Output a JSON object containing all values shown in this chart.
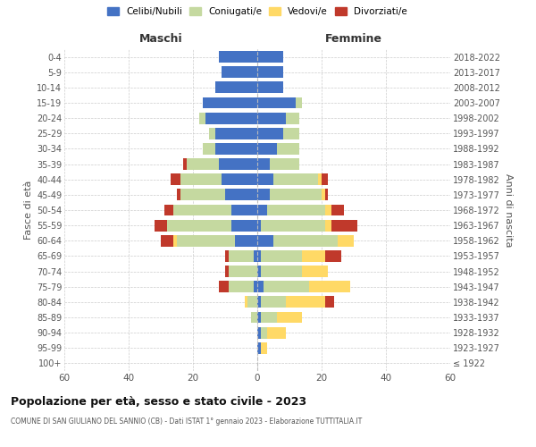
{
  "age_groups": [
    "100+",
    "95-99",
    "90-94",
    "85-89",
    "80-84",
    "75-79",
    "70-74",
    "65-69",
    "60-64",
    "55-59",
    "50-54",
    "45-49",
    "40-44",
    "35-39",
    "30-34",
    "25-29",
    "20-24",
    "15-19",
    "10-14",
    "5-9",
    "0-4"
  ],
  "birth_years": [
    "≤ 1922",
    "1923-1927",
    "1928-1932",
    "1933-1937",
    "1938-1942",
    "1943-1947",
    "1948-1952",
    "1953-1957",
    "1958-1962",
    "1963-1967",
    "1968-1972",
    "1973-1977",
    "1978-1982",
    "1983-1987",
    "1988-1992",
    "1993-1997",
    "1998-2002",
    "2003-2007",
    "2008-2012",
    "2013-2017",
    "2018-2022"
  ],
  "maschi": {
    "celibi": [
      0,
      0,
      0,
      0,
      0,
      1,
      0,
      1,
      7,
      8,
      8,
      10,
      11,
      12,
      13,
      13,
      16,
      17,
      13,
      11,
      12
    ],
    "coniugati": [
      0,
      0,
      0,
      2,
      3,
      8,
      9,
      8,
      18,
      20,
      18,
      14,
      13,
      10,
      4,
      2,
      2,
      0,
      0,
      0,
      0
    ],
    "vedovi": [
      0,
      0,
      0,
      0,
      1,
      0,
      0,
      0,
      1,
      0,
      0,
      0,
      0,
      0,
      0,
      0,
      0,
      0,
      0,
      0,
      0
    ],
    "divorziati": [
      0,
      0,
      0,
      0,
      0,
      3,
      1,
      1,
      4,
      4,
      3,
      1,
      3,
      1,
      0,
      0,
      0,
      0,
      0,
      0,
      0
    ]
  },
  "femmine": {
    "nubili": [
      0,
      1,
      1,
      1,
      1,
      2,
      1,
      1,
      5,
      1,
      3,
      4,
      5,
      4,
      6,
      8,
      9,
      12,
      8,
      8,
      8
    ],
    "coniugate": [
      0,
      0,
      2,
      5,
      8,
      14,
      13,
      13,
      20,
      20,
      18,
      16,
      14,
      9,
      7,
      5,
      4,
      2,
      0,
      0,
      0
    ],
    "vedove": [
      0,
      2,
      6,
      8,
      12,
      13,
      8,
      7,
      5,
      2,
      2,
      1,
      1,
      0,
      0,
      0,
      0,
      0,
      0,
      0,
      0
    ],
    "divorziate": [
      0,
      0,
      0,
      0,
      3,
      0,
      0,
      5,
      0,
      8,
      4,
      1,
      2,
      0,
      0,
      0,
      0,
      0,
      0,
      0,
      0
    ]
  },
  "colors": {
    "celibi": "#4472c4",
    "coniugati": "#c5d9a0",
    "vedovi": "#ffd966",
    "divorziati": "#c0392b"
  },
  "xlim": 60,
  "title": "Popolazione per età, sesso e stato civile - 2023",
  "subtitle": "COMUNE DI SAN GIULIANO DEL SANNIO (CB) - Dati ISTAT 1° gennaio 2023 - Elaborazione TUTTITALIA.IT",
  "ylabel_left": "Fasce di età",
  "ylabel_right": "Anni di nascita",
  "xlabel_left": "Maschi",
  "xlabel_right": "Femmine"
}
